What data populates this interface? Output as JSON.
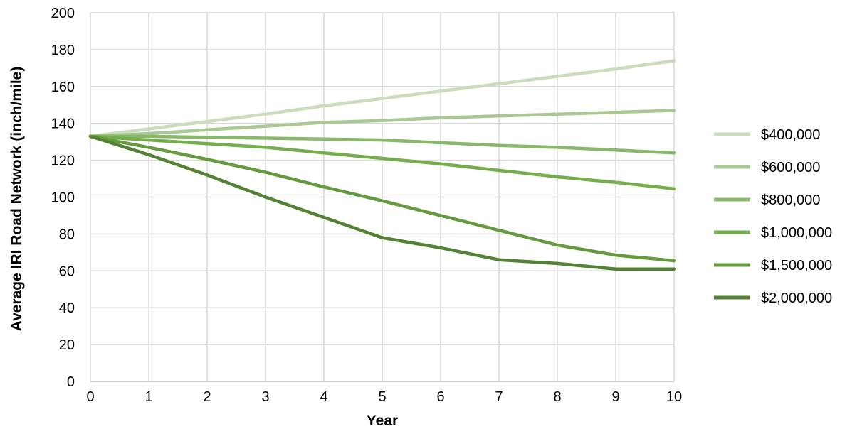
{
  "chart_data": {
    "type": "line",
    "title": "",
    "xlabel": "Year",
    "ylabel": "Average IRI Road Network (inch/mile)",
    "x": [
      0,
      1,
      2,
      3,
      4,
      5,
      6,
      7,
      8,
      9,
      10
    ],
    "xlim": [
      0,
      10
    ],
    "ylim": [
      0,
      200
    ],
    "x_ticks": [
      "0",
      "1",
      "2",
      "3",
      "4",
      "5",
      "6",
      "7",
      "8",
      "9",
      "10"
    ],
    "y_ticks": [
      "0",
      "20",
      "40",
      "60",
      "80",
      "100",
      "120",
      "140",
      "160",
      "180",
      "200"
    ],
    "grid": true,
    "legend_position": "right",
    "series": [
      {
        "name": "$400,000",
        "color": "#c9dcbc",
        "values": [
          133,
          137,
          141,
          145,
          149.5,
          153.5,
          157.5,
          161.5,
          165.5,
          169.5,
          174
        ]
      },
      {
        "name": "$600,000",
        "color": "#a9c994",
        "values": [
          133,
          134.5,
          136.5,
          138.5,
          140.5,
          141.5,
          143,
          144,
          145,
          146,
          147
        ]
      },
      {
        "name": "$800,000",
        "color": "#89b86a",
        "values": [
          133,
          133,
          132.5,
          132,
          131.5,
          131,
          129.5,
          128,
          127,
          125.5,
          124
        ]
      },
      {
        "name": "$1,000,000",
        "color": "#74ad4c",
        "values": [
          133,
          131,
          129,
          127,
          124,
          121,
          118,
          114.5,
          111,
          108,
          104.5
        ]
      },
      {
        "name": "$1,500,000",
        "color": "#659a3f",
        "values": [
          133,
          127,
          120.5,
          113.5,
          105.5,
          98,
          90,
          82,
          74,
          68.5,
          65.5
        ]
      },
      {
        "name": "$2,000,000",
        "color": "#548235",
        "values": [
          133,
          123,
          112,
          100,
          89,
          78,
          72.5,
          66,
          64,
          61,
          61
        ]
      }
    ]
  }
}
